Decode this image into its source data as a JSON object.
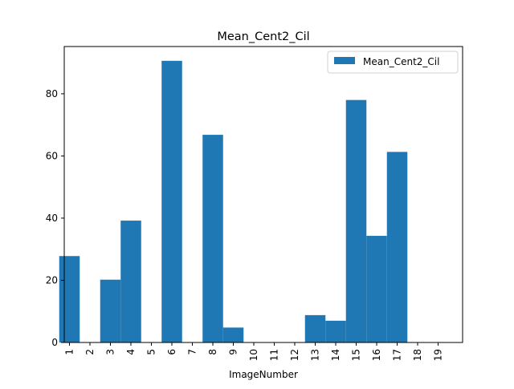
{
  "chart_data": {
    "type": "bar",
    "title": "Mean_Cent2_Cil",
    "xlabel": "ImageNumber",
    "ylabel": "",
    "categories": [
      "1",
      "2",
      "3",
      "4",
      "5",
      "6",
      "7",
      "8",
      "9",
      "10",
      "11",
      "12",
      "13",
      "14",
      "15",
      "16",
      "17",
      "18",
      "19"
    ],
    "series": [
      {
        "name": "Mean_Cent2_Cil",
        "color": "#1f77b4",
        "values": [
          27.8,
          0,
          20.2,
          39.2,
          0,
          90.6,
          0,
          66.8,
          4.8,
          0,
          0,
          0,
          8.8,
          7.0,
          78.0,
          34.3,
          61.3,
          0,
          0
        ]
      }
    ],
    "ylim": [
      0,
      95.2
    ],
    "yticks": [
      0,
      20,
      40,
      60,
      80
    ],
    "legend": {
      "location": "top-right",
      "entries": [
        "Mean_Cent2_Cil"
      ]
    },
    "grid": false
  }
}
